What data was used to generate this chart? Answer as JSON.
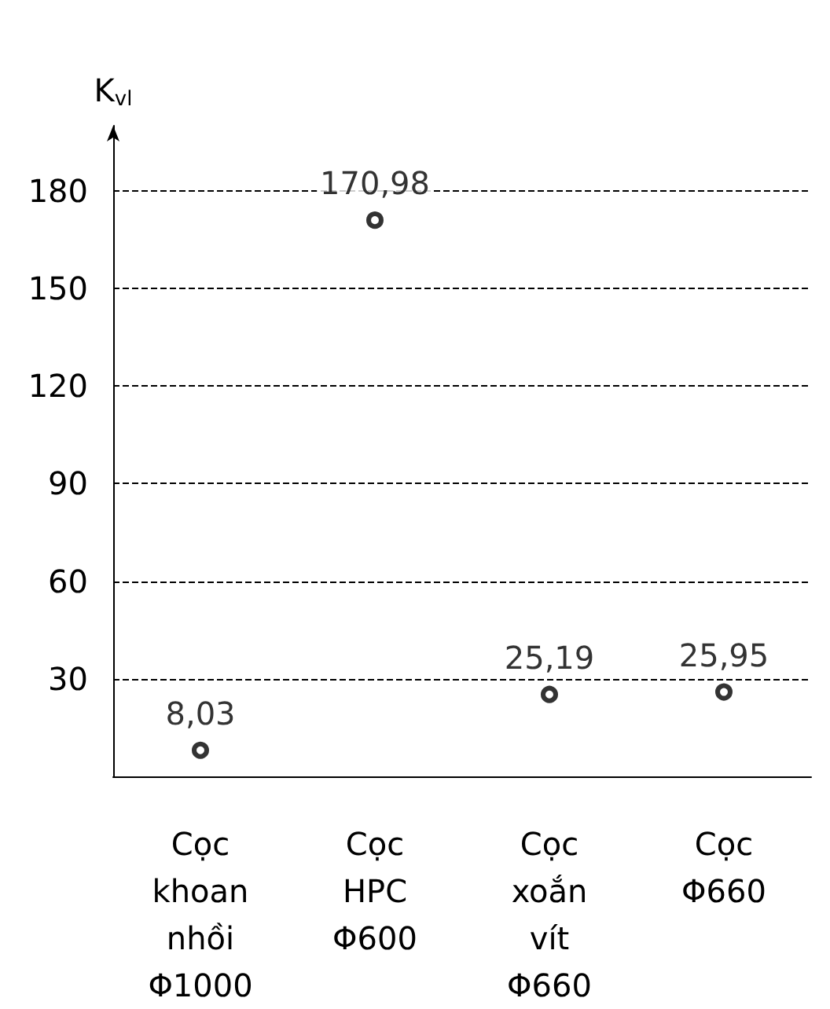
{
  "chart_data": {
    "type": "scatter",
    "ylabel": "K$_{vl}$",
    "categories": [
      "Cọc\nkhoan\nnhồi\nΦ1000",
      "Cọc\nHPC\nΦ600",
      "Cọc\nxoắn\nvít\nΦ660",
      "Cọc\nΦ660"
    ],
    "series": [
      {
        "color": "#000000",
        "values": [
          8.03,
          170.98,
          25.19,
          25.95
        ],
        "value_labels": [
          "8,03",
          "170,98",
          "25,19",
          "25,95"
        ]
      }
    ],
    "ylim": [
      0,
      200
    ],
    "yticks": [
      30,
      60,
      90,
      120,
      150,
      180
    ],
    "grid": "y",
    "marker": "circle"
  }
}
